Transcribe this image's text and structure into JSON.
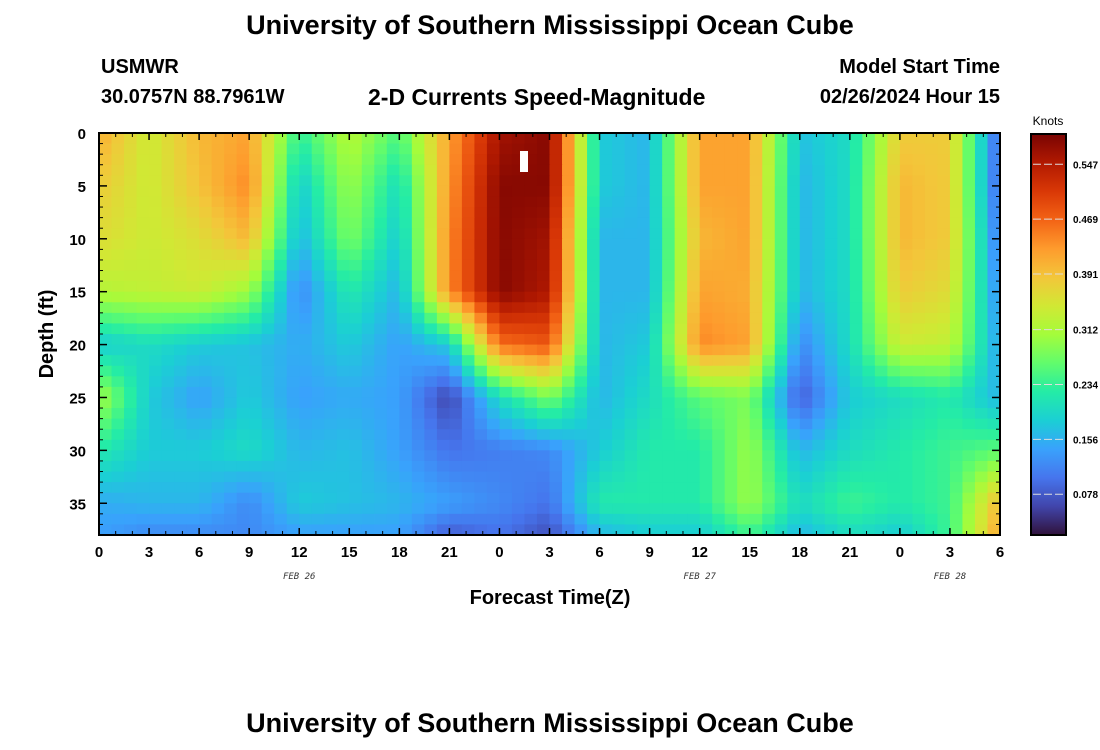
{
  "header": {
    "title": "University of Southern Mississippi Ocean Cube",
    "station": "USMWR",
    "coords": "30.0757N  88.7961W",
    "product": "2-D Currents Speed-Magnitude",
    "model_label": "Model Start Time",
    "model_time": "02/26/2024 Hour 15",
    "bottom_title": "University of Southern Mississippi Ocean Cube"
  },
  "chart_data": {
    "type": "heatmap",
    "xlabel": "Forecast Time(Z)",
    "ylabel": "Depth (ft)",
    "x_tick_labels": [
      "0",
      "3",
      "6",
      "9",
      "12",
      "15",
      "18",
      "21",
      "0",
      "3",
      "6",
      "9",
      "12",
      "15",
      "18",
      "21",
      "0",
      "3",
      "6"
    ],
    "x_ticks_hours": [
      0,
      3,
      6,
      9,
      12,
      15,
      18,
      21,
      24,
      27,
      30,
      33,
      36,
      39,
      42,
      45,
      48,
      51,
      54
    ],
    "xlim_hours": [
      0,
      54
    ],
    "day_labels": [
      {
        "text": "FEB 26",
        "hour": 12
      },
      {
        "text": "FEB 27",
        "hour": 36
      },
      {
        "text": "FEB 28",
        "hour": 51
      }
    ],
    "y_ticks": [
      0,
      5,
      10,
      15,
      20,
      25,
      30,
      35
    ],
    "ylim": [
      0,
      38
    ],
    "y_inverted": true,
    "colorbar": {
      "title": "Knots",
      "ticks": [
        0.078,
        0.156,
        0.234,
        0.312,
        0.391,
        0.469,
        0.547
      ],
      "range": [
        0.02,
        0.59
      ],
      "colors": [
        "#30123b",
        "#4145ab",
        "#4675ed",
        "#39a2fc",
        "#1bcfd4",
        "#24eca6",
        "#61fc6c",
        "#a4fc3b",
        "#d1e834",
        "#f3c63a",
        "#fe9b2d",
        "#f36315",
        "#d93806",
        "#b11901",
        "#7a0403"
      ]
    },
    "speed_grid_hours": [
      0,
      3,
      6,
      9,
      12,
      15,
      18,
      21,
      24,
      27,
      30,
      33,
      36,
      39,
      42,
      45,
      48,
      51,
      54
    ],
    "speed_grid_depths_ft": [
      0,
      5,
      10,
      15,
      20,
      25,
      30,
      35,
      38
    ],
    "speed_knots": [
      [
        0.41,
        0.34,
        0.4,
        0.42,
        0.23,
        0.32,
        0.25,
        0.42,
        0.56,
        0.58,
        0.18,
        0.16,
        0.42,
        0.42,
        0.17,
        0.2,
        0.38,
        0.38,
        0.08
      ],
      [
        0.38,
        0.34,
        0.39,
        0.44,
        0.18,
        0.3,
        0.2,
        0.43,
        0.58,
        0.58,
        0.18,
        0.16,
        0.42,
        0.42,
        0.16,
        0.2,
        0.4,
        0.38,
        0.08
      ],
      [
        0.36,
        0.34,
        0.36,
        0.4,
        0.16,
        0.28,
        0.18,
        0.44,
        0.58,
        0.56,
        0.16,
        0.16,
        0.4,
        0.42,
        0.16,
        0.2,
        0.4,
        0.38,
        0.1
      ],
      [
        0.32,
        0.33,
        0.34,
        0.3,
        0.12,
        0.22,
        0.16,
        0.44,
        0.58,
        0.55,
        0.16,
        0.16,
        0.42,
        0.41,
        0.16,
        0.2,
        0.38,
        0.36,
        0.12
      ],
      [
        0.18,
        0.2,
        0.18,
        0.17,
        0.15,
        0.18,
        0.14,
        0.18,
        0.46,
        0.48,
        0.16,
        0.18,
        0.44,
        0.42,
        0.12,
        0.2,
        0.34,
        0.33,
        0.14
      ],
      [
        0.31,
        0.18,
        0.14,
        0.18,
        0.14,
        0.15,
        0.14,
        0.06,
        0.2,
        0.28,
        0.16,
        0.2,
        0.26,
        0.28,
        0.08,
        0.18,
        0.2,
        0.22,
        0.16
      ],
      [
        0.22,
        0.18,
        0.18,
        0.2,
        0.16,
        0.17,
        0.14,
        0.1,
        0.11,
        0.12,
        0.18,
        0.22,
        0.22,
        0.3,
        0.16,
        0.2,
        0.22,
        0.24,
        0.26
      ],
      [
        0.15,
        0.16,
        0.16,
        0.12,
        0.18,
        0.17,
        0.16,
        0.14,
        0.12,
        0.1,
        0.22,
        0.22,
        0.22,
        0.3,
        0.2,
        0.24,
        0.22,
        0.24,
        0.4
      ],
      [
        0.14,
        0.12,
        0.12,
        0.12,
        0.14,
        0.14,
        0.14,
        0.08,
        0.1,
        0.07,
        0.16,
        0.18,
        0.18,
        0.24,
        0.16,
        0.2,
        0.18,
        0.24,
        0.42
      ]
    ]
  }
}
